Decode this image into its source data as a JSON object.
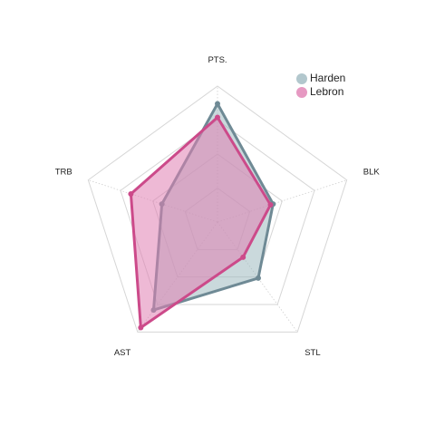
{
  "chart_data": {
    "type": "radar",
    "axes": [
      "PTS.",
      "BLK",
      "STL",
      "AST",
      "TRB"
    ],
    "range": [
      0,
      1
    ],
    "levels": 4,
    "series": [
      {
        "name": "Harden",
        "values": [
          0.87,
          0.43,
          0.51,
          0.8,
          0.43
        ],
        "color": "#6f8a95",
        "fill": "#9fb9c0"
      },
      {
        "name": "Lebron",
        "values": [
          0.77,
          0.41,
          0.32,
          0.96,
          0.67
        ],
        "color": "#cc4a8a",
        "fill": "#e07fb3"
      }
    ],
    "legend_position": "top-right"
  }
}
